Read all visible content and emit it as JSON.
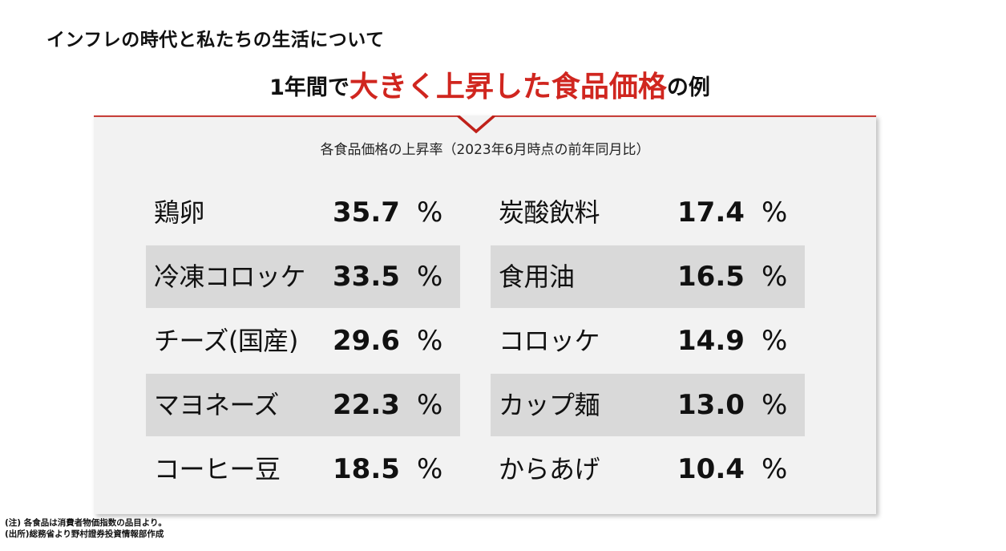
{
  "page_title": "インフレの時代と私たちの生活について",
  "headline": {
    "prefix": "1年間で",
    "emphasis": "大きく上昇した食品価格",
    "suffix": "の例",
    "accent_color": "#d0261f"
  },
  "panel": {
    "subtitle": "各食品価格の上昇率（2023年6月時点の前年同月比）"
  },
  "items_left": [
    {
      "name": "鶏卵",
      "rate": "35.7",
      "unit": "%"
    },
    {
      "name": "冷凍コロッケ",
      "rate": "33.5",
      "unit": "%"
    },
    {
      "name": "チーズ(国産)",
      "rate": "29.6",
      "unit": "%"
    },
    {
      "name": "マヨネーズ",
      "rate": "22.3",
      "unit": "%"
    },
    {
      "name": "コーヒー豆",
      "rate": "18.5",
      "unit": "%"
    }
  ],
  "items_right": [
    {
      "name": "炭酸飲料",
      "rate": "17.4",
      "unit": "%"
    },
    {
      "name": "食用油",
      "rate": "16.5",
      "unit": "%"
    },
    {
      "name": "コロッケ",
      "rate": "14.9",
      "unit": "%"
    },
    {
      "name": "カップ麺",
      "rate": "13.0",
      "unit": "%"
    },
    {
      "name": "からあげ",
      "rate": "10.4",
      "unit": "%"
    }
  ],
  "notes": {
    "note": "(注) 各食品は消費者物価指数の品目より。",
    "source": "(出所)総務省より野村證券投資情報部作成"
  }
}
